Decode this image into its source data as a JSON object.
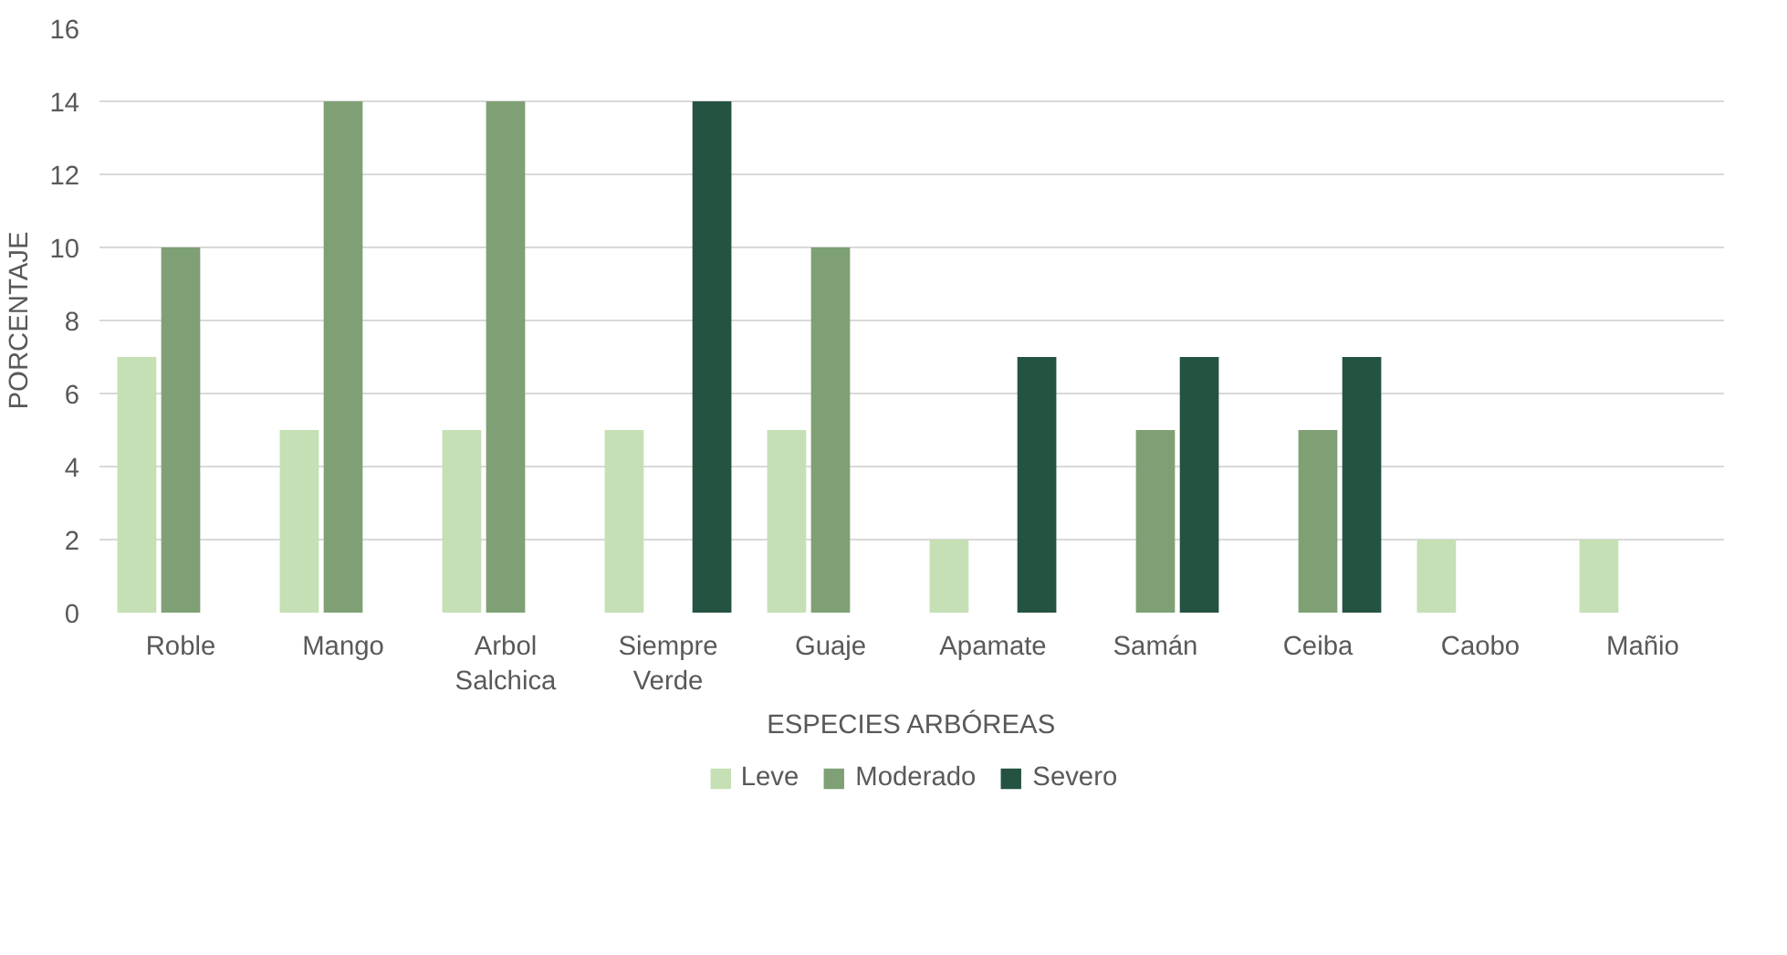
{
  "chart_data": {
    "type": "bar",
    "xlabel": "ESPECIES ARBÓREAS",
    "ylabel": "PORCENTAJE",
    "categories": [
      "Roble",
      "Mango",
      "Arbol Salchica",
      "Siempre Verde",
      "Guaje",
      "Apamate",
      "Samán",
      "Ceiba",
      "Caobo",
      "Mañio"
    ],
    "series": [
      {
        "name": "Leve",
        "color": "#c5e0b4",
        "values": [
          7,
          5,
          5,
          5,
          5,
          2,
          null,
          null,
          2,
          2
        ]
      },
      {
        "name": "Moderado",
        "color": "#7fa074",
        "values": [
          10,
          14,
          14,
          null,
          10,
          null,
          5,
          5,
          null,
          null
        ]
      },
      {
        "name": "Severo",
        "color": "#245441",
        "values": [
          null,
          null,
          null,
          14,
          null,
          7,
          7,
          7,
          null,
          null
        ]
      }
    ],
    "ylim": [
      0,
      16
    ],
    "yticks": [
      0,
      2,
      4,
      6,
      8,
      10,
      12,
      14,
      16
    ],
    "grid": "y",
    "legend": "bottom"
  }
}
